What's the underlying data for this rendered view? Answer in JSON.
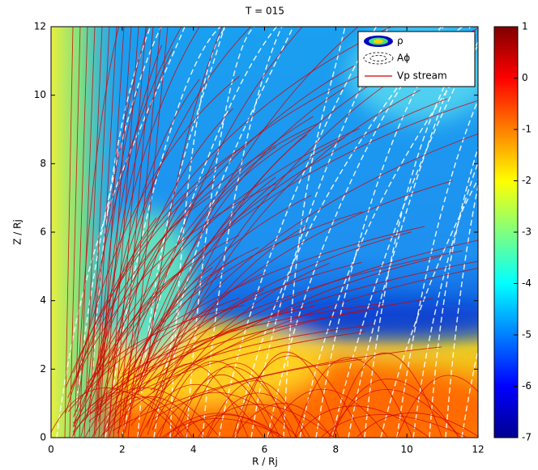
{
  "chart_data": {
    "type": "heatmap",
    "title": "T = 015",
    "xlabel": "R / Rj",
    "ylabel": "Z / Rj",
    "xlim": [
      0,
      12
    ],
    "ylim": [
      0,
      12
    ],
    "xticks": [
      0,
      2,
      4,
      6,
      8,
      10,
      12
    ],
    "yticks": [
      0,
      2,
      4,
      6,
      8,
      10,
      12
    ],
    "clim": [
      -7,
      1
    ],
    "cticks": [
      1,
      0,
      -1,
      -2,
      -3,
      -4,
      -5,
      -6,
      -7
    ],
    "series": [
      {
        "name": "ρ"
      },
      {
        "name": "Aϕ"
      },
      {
        "name": "Vp stream",
        "color": "#d00000"
      }
    ]
  }
}
